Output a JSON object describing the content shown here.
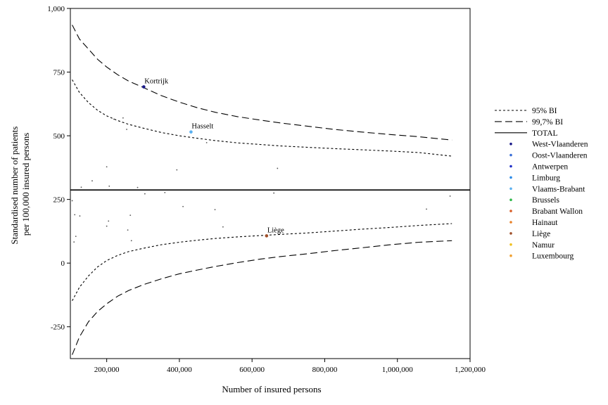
{
  "chart_data": {
    "type": "scatter",
    "title": "",
    "xlabel": "Number of insured persons",
    "ylabel_lines": [
      "Standardised number of patients",
      "per 100,000 insured persons"
    ],
    "xlim": [
      100000,
      1200000
    ],
    "ylim": [
      -375,
      1000
    ],
    "x_ticks": [
      200000,
      400000,
      600000,
      800000,
      1000000,
      1200000
    ],
    "x_tick_labels": [
      "200,000",
      "400,000",
      "600,000",
      "800,000",
      "1,000,000",
      "1,200,000"
    ],
    "y_ticks": [
      1000,
      750,
      500,
      250,
      0,
      -250
    ],
    "y_tick_labels": [
      "1,000",
      "750",
      "500",
      "250",
      "0",
      "-250"
    ],
    "grid": false,
    "legend_position": "right",
    "total": 287,
    "curves": {
      "x": [
        105000,
        125000,
        150000,
        175000,
        200000,
        230000,
        260000,
        300000,
        350000,
        400000,
        450000,
        500000,
        560000,
        620000,
        680000,
        750000,
        820000,
        900000,
        980000,
        1060000,
        1150000
      ],
      "ci95_upper": [
        720,
        670,
        630,
        600,
        578,
        560,
        545,
        530,
        513,
        500,
        490,
        481,
        472,
        466,
        460,
        455,
        450,
        445,
        440,
        434,
        420
      ],
      "ci95_lower": [
        -148,
        -95,
        -50,
        -15,
        10,
        30,
        45,
        58,
        72,
        82,
        90,
        97,
        103,
        108,
        113,
        118,
        125,
        133,
        140,
        148,
        155
      ],
      "ci997_upper": [
        935,
        880,
        840,
        800,
        770,
        740,
        715,
        690,
        658,
        632,
        610,
        592,
        575,
        562,
        550,
        538,
        526,
        515,
        505,
        496,
        483
      ],
      "ci997_lower": [
        -360,
        -290,
        -230,
        -190,
        -160,
        -130,
        -108,
        -85,
        -62,
        -42,
        -27,
        -13,
        2,
        15,
        26,
        36,
        48,
        60,
        72,
        82,
        88
      ]
    },
    "points": [
      {
        "x": 302000,
        "y": 692,
        "province": "West-Vlaanderen",
        "label": "Kortrijk"
      },
      {
        "x": 432000,
        "y": 515,
        "province": "Vlaams-Brabant",
        "label": "Hasselt"
      },
      {
        "x": 640000,
        "y": 107,
        "province": "Liège",
        "label": "Liège"
      },
      {
        "x": 220000,
        "y": 565,
        "province": "Oost-Vlaanderen",
        "label": ""
      },
      {
        "x": 245000,
        "y": 570,
        "province": "Antwerpen",
        "label": ""
      },
      {
        "x": 255000,
        "y": 525,
        "province": "Limburg",
        "label": ""
      },
      {
        "x": 475000,
        "y": 473,
        "province": "Brussels",
        "label": ""
      },
      {
        "x": 200000,
        "y": 378,
        "province": "Hainaut",
        "label": ""
      },
      {
        "x": 393000,
        "y": 366,
        "province": "Namur",
        "label": ""
      },
      {
        "x": 670000,
        "y": 372,
        "province": "Luxembourg",
        "label": ""
      },
      {
        "x": 160000,
        "y": 323,
        "province": "Antwerpen",
        "label": ""
      },
      {
        "x": 130000,
        "y": 298,
        "province": "Oost-Vlaanderen",
        "label": ""
      },
      {
        "x": 207000,
        "y": 302,
        "province": "West-Vlaanderen",
        "label": ""
      },
      {
        "x": 285000,
        "y": 297,
        "province": "Limburg",
        "label": ""
      },
      {
        "x": 305000,
        "y": 272,
        "province": "Hainaut",
        "label": ""
      },
      {
        "x": 360000,
        "y": 277,
        "province": "Liège",
        "label": ""
      },
      {
        "x": 660000,
        "y": 275,
        "province": "Brabant Wallon",
        "label": ""
      },
      {
        "x": 105000,
        "y": 245,
        "province": "Namur",
        "label": ""
      },
      {
        "x": 410000,
        "y": 222,
        "province": "Hainaut",
        "label": ""
      },
      {
        "x": 498000,
        "y": 210,
        "province": "Liège",
        "label": ""
      },
      {
        "x": 1080000,
        "y": 212,
        "province": "Oost-Vlaanderen",
        "label": ""
      },
      {
        "x": 1145000,
        "y": 263,
        "province": "Antwerpen",
        "label": ""
      },
      {
        "x": 112000,
        "y": 190,
        "province": "Luxembourg",
        "label": ""
      },
      {
        "x": 126000,
        "y": 185,
        "province": "Namur",
        "label": ""
      },
      {
        "x": 265000,
        "y": 188,
        "province": "Brabant Wallon",
        "label": ""
      },
      {
        "x": 205000,
        "y": 165,
        "province": "Hainaut",
        "label": ""
      },
      {
        "x": 200000,
        "y": 145,
        "province": "Liège",
        "label": ""
      },
      {
        "x": 258000,
        "y": 130,
        "province": "Luxembourg",
        "label": ""
      },
      {
        "x": 520000,
        "y": 142,
        "province": "Namur",
        "label": ""
      },
      {
        "x": 115000,
        "y": 105,
        "province": "Brabant Wallon",
        "label": ""
      },
      {
        "x": 110000,
        "y": 83,
        "province": "Hainaut",
        "label": ""
      },
      {
        "x": 268000,
        "y": 88,
        "province": "Liège",
        "label": ""
      }
    ],
    "legend": [
      {
        "name": "95% BI",
        "kind": "line",
        "dash": "3,3"
      },
      {
        "name": "99,7% BI",
        "kind": "line",
        "dash": "10,5"
      },
      {
        "name": "TOTAL",
        "kind": "line",
        "dash": ""
      },
      {
        "name": "West-Vlaanderen",
        "kind": "dot",
        "color": "#1a1a8a"
      },
      {
        "name": "Oost-Vlaanderen",
        "kind": "dot",
        "color": "#3a6fd8"
      },
      {
        "name": "Antwerpen",
        "kind": "dot",
        "color": "#1f2fc8"
      },
      {
        "name": "Limburg",
        "kind": "dot",
        "color": "#2a8ae8"
      },
      {
        "name": "Vlaams-Brabant",
        "kind": "dot",
        "color": "#5ab0f0"
      },
      {
        "name": "Brussels",
        "kind": "dot",
        "color": "#2fb84a"
      },
      {
        "name": "Brabant Wallon",
        "kind": "dot",
        "color": "#d8602a"
      },
      {
        "name": "Hainaut",
        "kind": "dot",
        "color": "#e8822a"
      },
      {
        "name": "Liège",
        "kind": "dot",
        "color": "#a0502a"
      },
      {
        "name": "Namur",
        "kind": "dot",
        "color": "#f0c020"
      },
      {
        "name": "Luxembourg",
        "kind": "dot",
        "color": "#f0a030"
      }
    ]
  }
}
